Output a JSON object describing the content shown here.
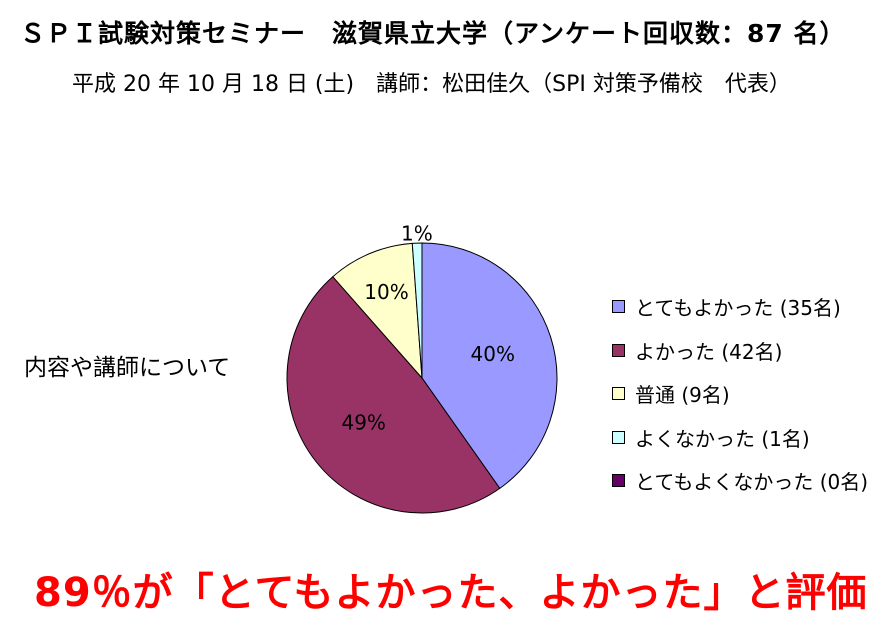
{
  "title": "ＳＰＩ試験対策セミナー　滋賀県立大学（アンケート回収数：87 名）",
  "subtitle": "平成 20 年 10 月 18 日 (土)　講師：松田佳久（SPI 対策予備校　代表）",
  "side_label": "内容や講師について",
  "conclusion": "89％が「とてもよかった、よかった」と評価",
  "chart_data": {
    "type": "pie",
    "slices": [
      {
        "label": "とてもよかった (35名)",
        "value": 35,
        "pct_label": "40%",
        "color": "#9999ff"
      },
      {
        "label": "よかった (42名)",
        "value": 42,
        "pct_label": "49%",
        "color": "#993366"
      },
      {
        "label": "普通 (9名)",
        "value": 9,
        "pct_label": "10%",
        "color": "#ffffcc"
      },
      {
        "label": "よくなかった (1名)",
        "value": 1,
        "pct_label": "1%",
        "color": "#ccffff"
      },
      {
        "label": "とてもよくなかった (0名)",
        "value": 0,
        "pct_label": "",
        "color": "#660066"
      }
    ],
    "legend_position": "right"
  }
}
